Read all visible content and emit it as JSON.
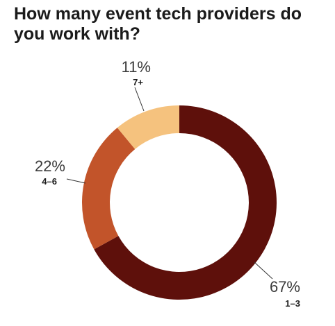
{
  "chart_data": {
    "type": "pie",
    "title": "How many event tech providers do you work with?",
    "slices": [
      {
        "label": "1–3",
        "value": 67,
        "value_label": "67%",
        "color": "#5e100b"
      },
      {
        "label": "4–6",
        "value": 22,
        "value_label": "22%",
        "color": "#c2542a"
      },
      {
        "label": "7+",
        "value": 11,
        "value_label": "11%",
        "color": "#f5c27e"
      }
    ],
    "donut": true,
    "start_angle": "top",
    "direction": "clockwise"
  }
}
